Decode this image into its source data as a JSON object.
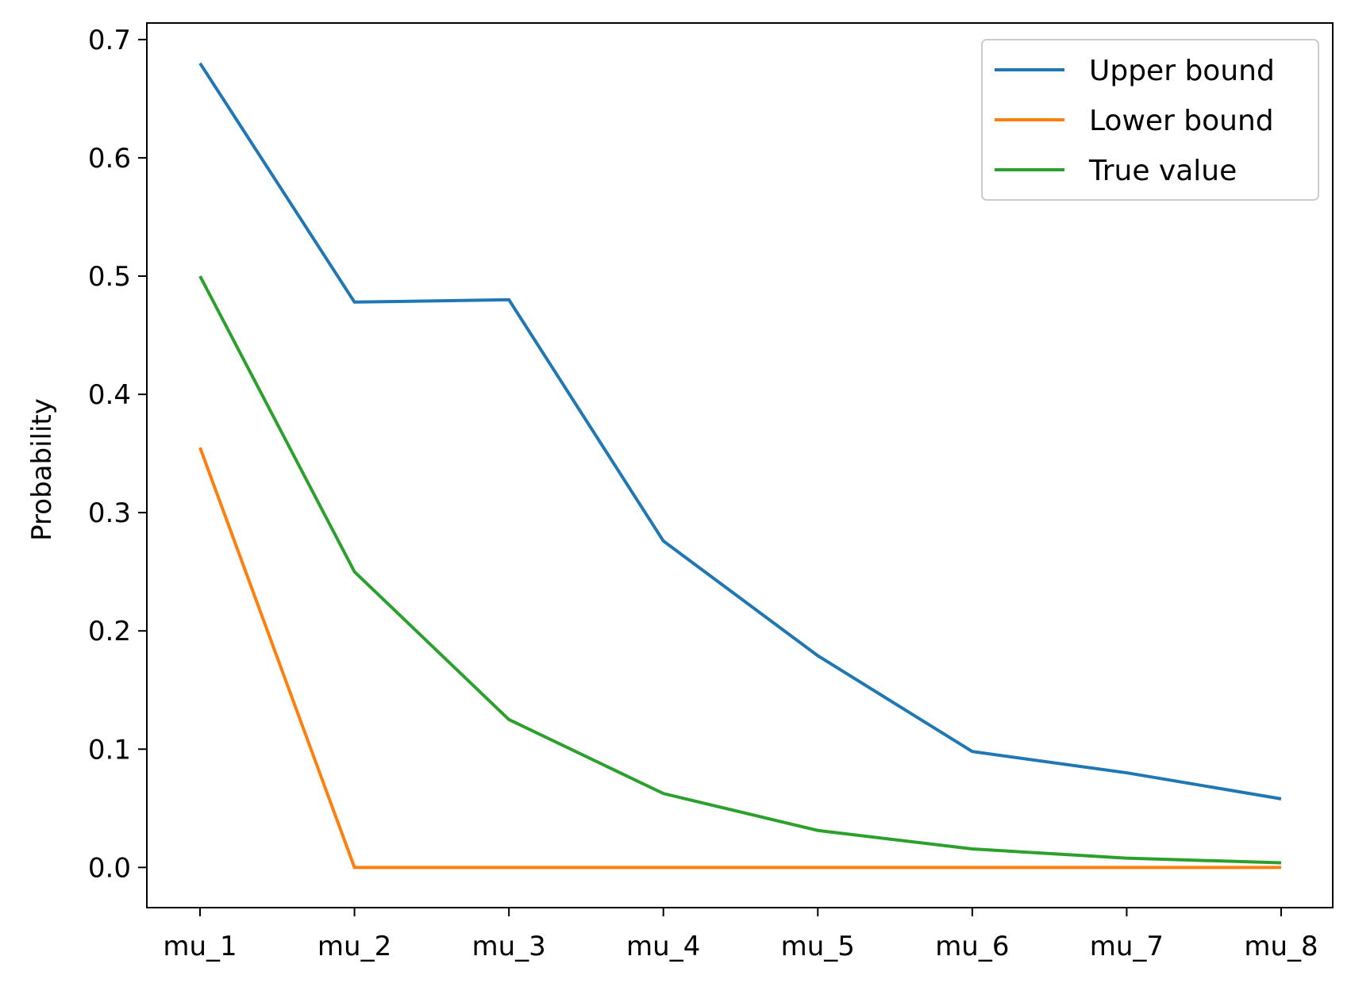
{
  "chart_data": {
    "type": "line",
    "title": "",
    "xlabel": "",
    "ylabel": "Probability",
    "categories": [
      "mu_1",
      "mu_2",
      "mu_3",
      "mu_4",
      "mu_5",
      "mu_6",
      "mu_7",
      "mu_8"
    ],
    "series": [
      {
        "name": "Upper bound",
        "color": "#1f77b4",
        "values": [
          0.68,
          0.478,
          0.48,
          0.276,
          0.179,
          0.098,
          0.08,
          0.058
        ]
      },
      {
        "name": "Lower bound",
        "color": "#ff7f0e",
        "values": [
          0.355,
          0.0,
          0.0,
          0.0,
          0.0,
          0.0,
          0.0,
          0.0
        ]
      },
      {
        "name": "True value",
        "color": "#2ca02c",
        "values": [
          0.5,
          0.25,
          0.125,
          0.0625,
          0.03125,
          0.015625,
          0.0078125,
          0.00390625
        ]
      }
    ],
    "ylim": [
      -0.034,
      0.714
    ],
    "yticks": [
      0.0,
      0.1,
      0.2,
      0.3,
      0.4,
      0.5,
      0.6,
      0.7
    ],
    "ytick_labels": [
      "0.0",
      "0.1",
      "0.2",
      "0.3",
      "0.4",
      "0.5",
      "0.6",
      "0.7"
    ],
    "grid": false,
    "legend_position": "top-right"
  }
}
